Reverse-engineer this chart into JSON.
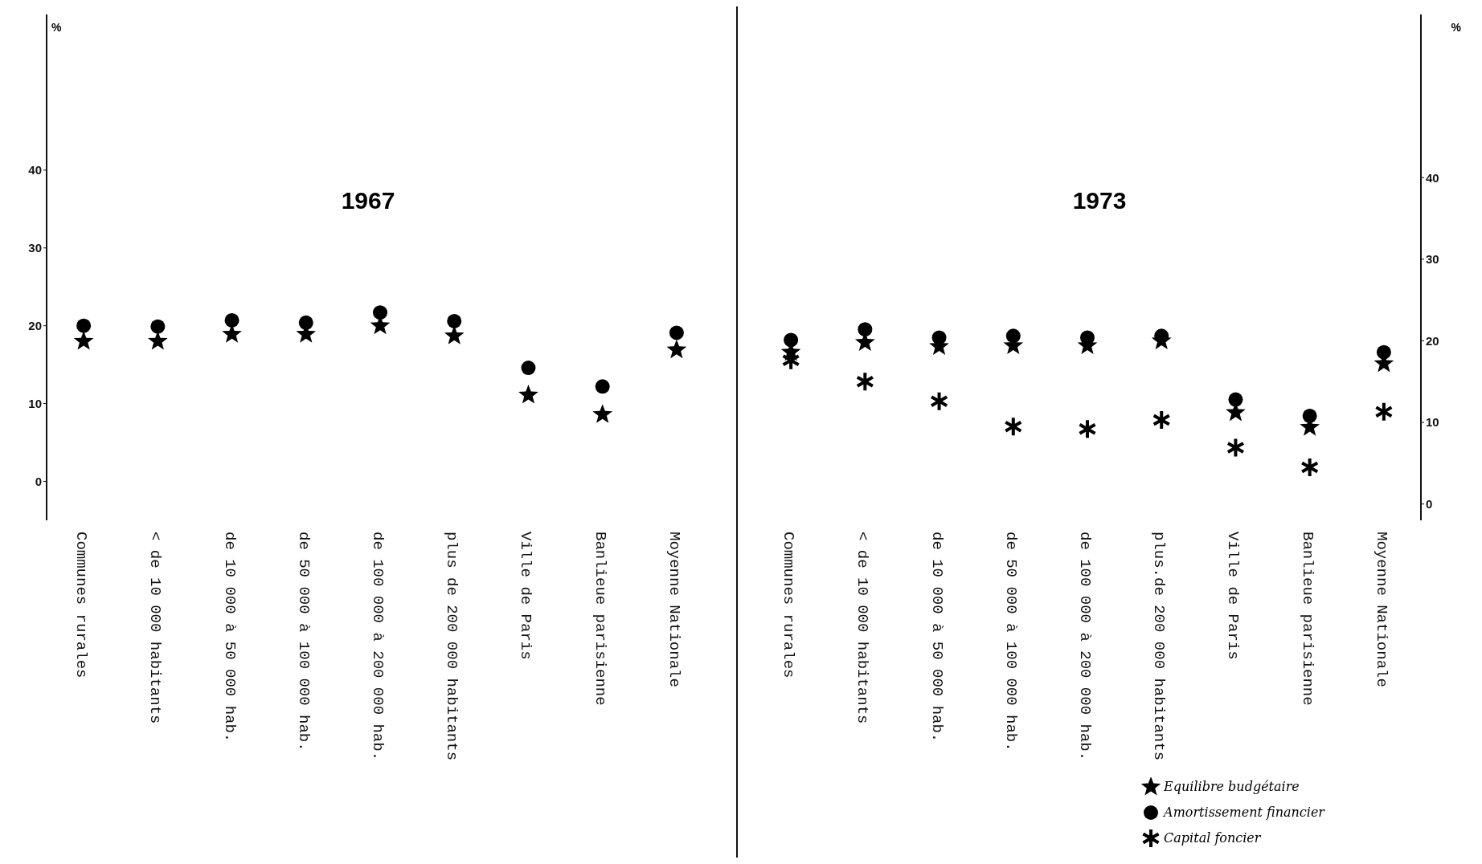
{
  "chart_data": [
    {
      "type": "scatter",
      "title": "1967",
      "ylabel": "%",
      "ylim": [
        -5,
        60
      ],
      "yticks": [
        0,
        10,
        20,
        30,
        40
      ],
      "grid": false,
      "legend": false,
      "categories": [
        "Communes rurales",
        "< de 10 000 habitants",
        "de 10 000 à 50 000 hab.",
        "de 50 000 à 100 000 hab.",
        "de 100 000 à 200 000 hab.",
        "plus de 200 000 habitants",
        "Ville de Paris",
        "Banlieue parisienne",
        "Moyenne Nationale"
      ],
      "series": [
        {
          "color": "#000000",
          "marker": "star",
          "values": [
            18.0,
            18.0,
            18.9,
            18.9,
            20.0,
            18.7,
            11.1,
            8.6,
            16.9
          ]
        },
        {
          "color": "#000000",
          "marker": "circle",
          "values": [
            20.0,
            19.9,
            20.7,
            20.4,
            21.7,
            20.6,
            14.6,
            12.2,
            19.1
          ]
        }
      ]
    },
    {
      "type": "scatter",
      "title": "1973",
      "ylabel": "%",
      "ylim": [
        -2,
        60
      ],
      "yticks": [
        0,
        10,
        20,
        30,
        40
      ],
      "grid": false,
      "legend": "bottom right",
      "categories": [
        "Communes rurales",
        "< de 10 000 habitants",
        "de 10 000 à 50 000 hab.",
        "de 50 000 à 100 000 hab.",
        "de 100 000 à 200 000 hab.",
        "plus.de 200 000 habitants",
        "Ville de Paris",
        "Banlieue parisienne",
        "Moyenne Nationale"
      ],
      "series": [
        {
          "name": "Equilibre budgétaire",
          "color": "#000000",
          "marker": "star",
          "values": [
            18.6,
            19.8,
            19.3,
            19.4,
            19.4,
            20.0,
            11.2,
            9.4,
            17.2
          ]
        },
        {
          "name": "Amortissement financier",
          "color": "#000000",
          "marker": "circle",
          "values": [
            20.1,
            21.4,
            20.4,
            20.6,
            20.4,
            20.6,
            12.8,
            10.8,
            18.6
          ]
        },
        {
          "name": "Capital foncier",
          "color": "#000000",
          "marker": "cross",
          "values": [
            17.6,
            15.0,
            12.6,
            9.5,
            9.2,
            10.3,
            6.9,
            4.5,
            11.3
          ]
        }
      ]
    }
  ]
}
